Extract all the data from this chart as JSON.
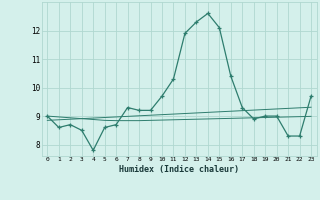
{
  "x": [
    0,
    1,
    2,
    3,
    4,
    5,
    6,
    7,
    8,
    9,
    10,
    11,
    12,
    13,
    14,
    15,
    16,
    17,
    18,
    19,
    20,
    21,
    22,
    23
  ],
  "y_main": [
    9.0,
    8.6,
    8.7,
    8.5,
    7.8,
    8.6,
    8.7,
    9.3,
    9.2,
    9.2,
    9.7,
    10.3,
    11.9,
    12.3,
    12.6,
    12.1,
    10.4,
    9.3,
    8.9,
    9.0,
    9.0,
    8.3,
    8.3,
    9.7
  ],
  "y_trend1": [
    8.85,
    8.87,
    8.89,
    8.91,
    8.93,
    8.95,
    8.97,
    8.99,
    9.01,
    9.03,
    9.05,
    9.07,
    9.09,
    9.11,
    9.13,
    9.15,
    9.17,
    9.19,
    9.21,
    9.23,
    9.25,
    9.27,
    9.29,
    9.31
  ],
  "y_trend2": [
    9.0,
    8.97,
    8.94,
    8.91,
    8.88,
    8.85,
    8.84,
    8.84,
    8.84,
    8.85,
    8.86,
    8.87,
    8.88,
    8.89,
    8.9,
    8.91,
    8.92,
    8.93,
    8.94,
    8.95,
    8.96,
    8.97,
    8.98,
    8.99
  ],
  "line_color": "#2e7d6e",
  "bg_color": "#d4f0eb",
  "grid_color": "#b0d8d0",
  "xlabel": "Humidex (Indice chaleur)",
  "xlim": [
    -0.5,
    23.5
  ],
  "ylim": [
    7.6,
    13.0
  ],
  "yticks": [
    8,
    9,
    10,
    11,
    12
  ],
  "xticks": [
    0,
    1,
    2,
    3,
    4,
    5,
    6,
    7,
    8,
    9,
    10,
    11,
    12,
    13,
    14,
    15,
    16,
    17,
    18,
    19,
    20,
    21,
    22,
    23
  ]
}
